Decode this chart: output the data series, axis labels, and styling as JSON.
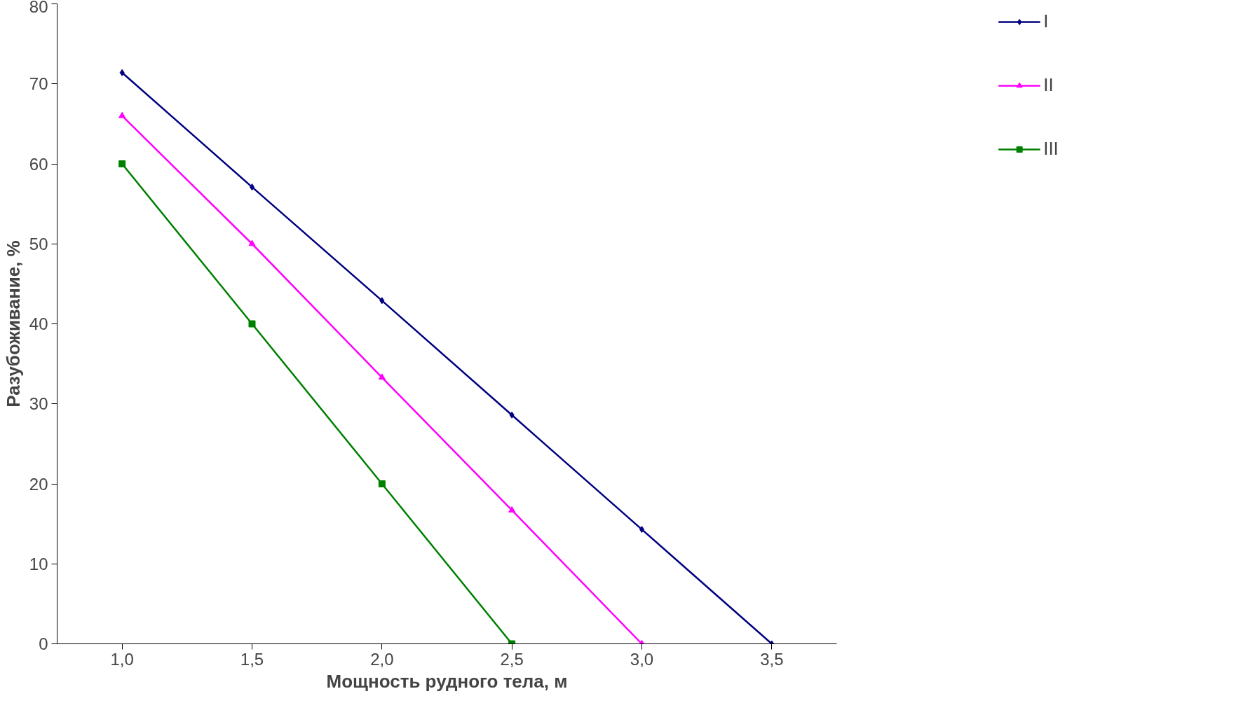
{
  "chart_data": {
    "type": "line",
    "xlabel": "Мощность рудного тела, м",
    "ylabel": "Разубоживание, %",
    "categories": [
      "1,0",
      "1,5",
      "2,0",
      "2,5",
      "3,0",
      "3,5"
    ],
    "series": [
      {
        "name": "I",
        "color": "#000080",
        "marker": "diamond",
        "values": [
          71.4,
          57.1,
          42.9,
          28.6,
          14.3,
          0
        ]
      },
      {
        "name": "II",
        "color": "#ff00ff",
        "marker": "triangle",
        "values": [
          66.0,
          50,
          33.3,
          16.7,
          0,
          null
        ]
      },
      {
        "name": "III",
        "color": "#008000",
        "marker": "square",
        "values": [
          60,
          40,
          20,
          0,
          null,
          null
        ]
      }
    ],
    "ylim": [
      0,
      80
    ],
    "yticks": [
      0,
      10,
      20,
      30,
      40,
      50,
      60,
      70,
      80
    ],
    "grid": false,
    "legend": "top right"
  }
}
